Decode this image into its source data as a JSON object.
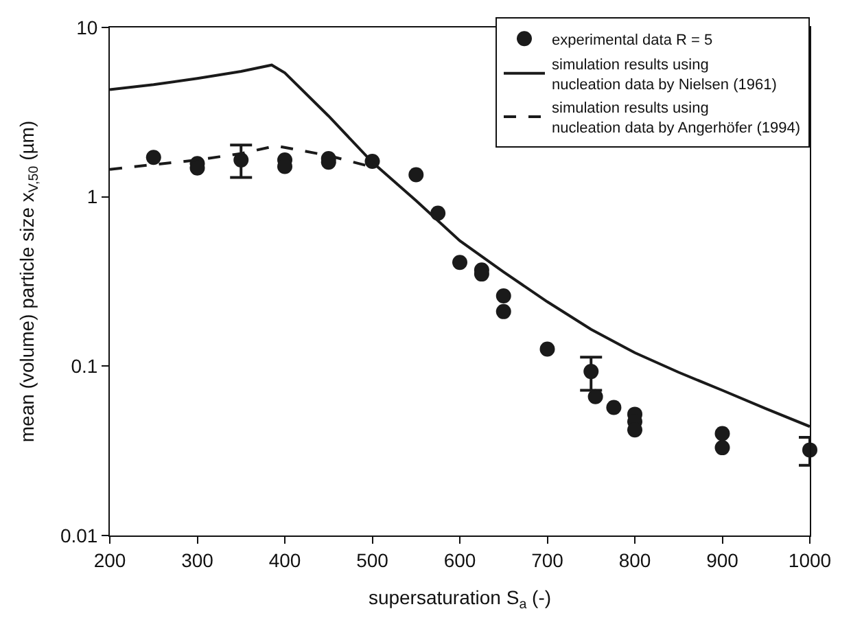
{
  "chart_data": {
    "type": "scatter",
    "xlabel": "supersaturation S$_{a}$ (-)",
    "ylabel": "mean (volume) particle size x$_{V,50}$ (µm)",
    "xlim": [
      200,
      1000
    ],
    "xticks": [
      200,
      300,
      400,
      500,
      600,
      700,
      800,
      900,
      1000
    ],
    "ylim": [
      0.01,
      10
    ],
    "yticks": [
      0.01,
      0.1,
      1,
      10
    ],
    "log": "y",
    "grid": false,
    "legend": "top right",
    "series": [
      {
        "name": "experimental data R = 5",
        "marker": "circle",
        "color": "#1a1a1a",
        "x": [
          250,
          300,
          300,
          350,
          400,
          400,
          450,
          450,
          500,
          550,
          575,
          600,
          625,
          625,
          650,
          650,
          700,
          750,
          755,
          776,
          800,
          800,
          800,
          900,
          900,
          1000
        ],
        "values": [
          1.71,
          1.57,
          1.48,
          1.65,
          1.65,
          1.51,
          1.68,
          1.6,
          1.62,
          1.35,
          0.8,
          0.41,
          0.37,
          0.35,
          0.26,
          0.21,
          0.126,
          0.093,
          0.066,
          0.057,
          0.052,
          0.047,
          0.042,
          0.04,
          0.033,
          0.032
        ],
        "errors": [
          null,
          null,
          null,
          [
            1.3,
            2.02
          ],
          null,
          null,
          null,
          null,
          null,
          null,
          null,
          null,
          null,
          null,
          null,
          null,
          null,
          [
            0.072,
            0.113
          ],
          null,
          null,
          null,
          null,
          null,
          null,
          null,
          [
            0.026,
            0.038
          ]
        ]
      },
      {
        "name": "simulation results using\nnucleation data by Nielsen (1961)",
        "type": "line",
        "line_style": "solid",
        "color": "#1a1a1a",
        "x": [
          200,
          250,
          300,
          350,
          385,
          400,
          450,
          500,
          550,
          600,
          650,
          700,
          750,
          800,
          850,
          900,
          950,
          1000
        ],
        "values": [
          4.3,
          4.6,
          5.0,
          5.5,
          6.0,
          5.4,
          3.0,
          1.6,
          0.95,
          0.55,
          0.36,
          0.24,
          0.165,
          0.12,
          0.092,
          0.072,
          0.056,
          0.044
        ]
      },
      {
        "name": "simulation results using\nnucleation data by Angerhöfer (1994)",
        "type": "line",
        "line_style": "dashed",
        "color": "#1a1a1a",
        "x": [
          200,
          250,
          300,
          350,
          390,
          450,
          500
        ],
        "values": [
          1.45,
          1.55,
          1.65,
          1.8,
          2.0,
          1.75,
          1.5
        ]
      }
    ]
  }
}
